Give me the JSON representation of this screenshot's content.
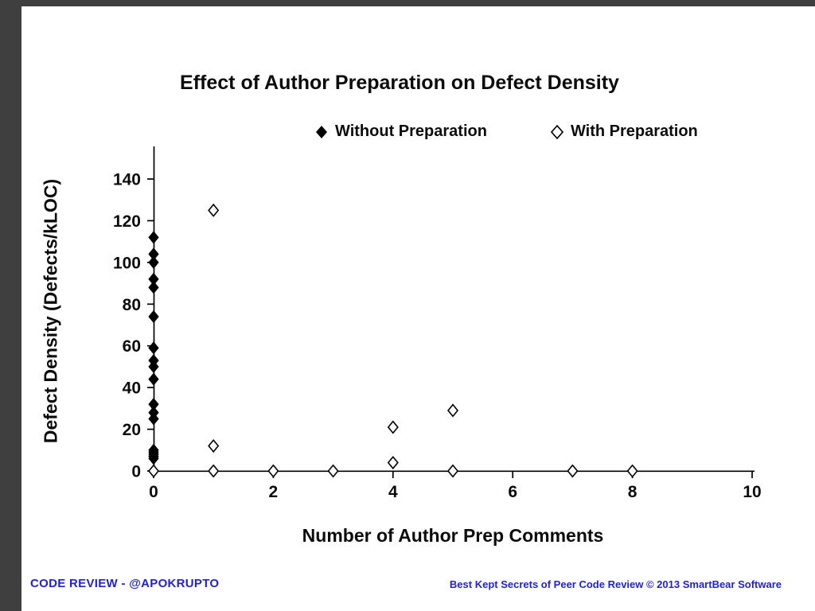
{
  "page": {
    "footer_left": "CODE REVIEW - @APOKRUPTO",
    "footer_right": "Best Kept Secrets of Peer Code Review © 2013 SmartBear Software",
    "accent_blue": "#2222cc",
    "frame_color": "#3f3f3f"
  },
  "chart_data": {
    "type": "scatter",
    "title": "Effect of Author Preparation on Defect Density",
    "xlabel": "Number of Author Prep Comments",
    "ylabel": "Defect Density (Defects/kLOC)",
    "xlim": [
      0,
      10
    ],
    "ylim": [
      0,
      140
    ],
    "x_ticks": [
      0,
      2,
      4,
      6,
      8,
      10
    ],
    "y_ticks": [
      0,
      20,
      40,
      60,
      80,
      100,
      120,
      140
    ],
    "grid": false,
    "legend_position": "top",
    "series": [
      {
        "name": "Without Preparation",
        "marker": "filled-diamond",
        "points": [
          [
            0,
            112
          ],
          [
            0,
            104
          ],
          [
            0,
            100
          ],
          [
            0,
            92
          ],
          [
            0,
            88
          ],
          [
            0,
            74
          ],
          [
            0,
            59
          ],
          [
            0,
            53
          ],
          [
            0,
            50
          ],
          [
            0,
            44
          ],
          [
            0,
            32
          ],
          [
            0,
            28
          ],
          [
            0,
            25
          ],
          [
            0,
            10
          ],
          [
            0,
            9
          ],
          [
            0,
            8
          ],
          [
            0,
            7
          ],
          [
            0,
            6
          ]
        ]
      },
      {
        "name": "With Preparation",
        "marker": "open-diamond",
        "points": [
          [
            0,
            0
          ],
          [
            1,
            125
          ],
          [
            1,
            12
          ],
          [
            1,
            0
          ],
          [
            2,
            0
          ],
          [
            3,
            0
          ],
          [
            4,
            21
          ],
          [
            4,
            4
          ],
          [
            5,
            29
          ],
          [
            5,
            0
          ],
          [
            7,
            0
          ],
          [
            8,
            0
          ]
        ]
      }
    ]
  }
}
